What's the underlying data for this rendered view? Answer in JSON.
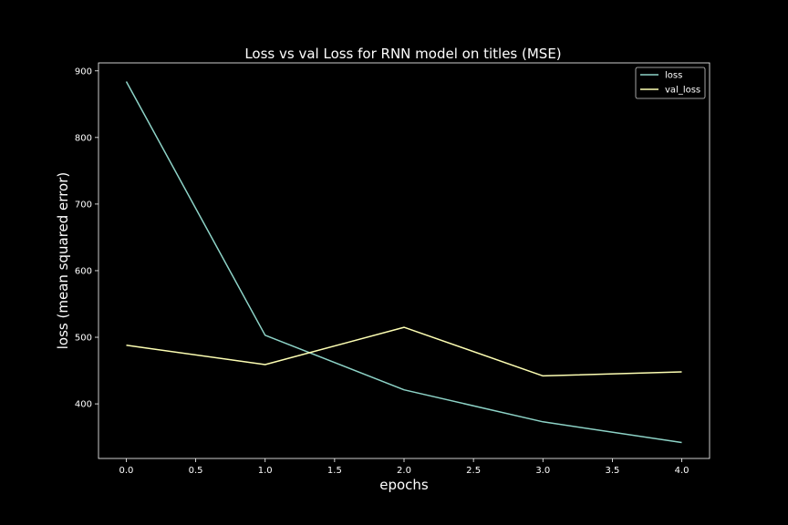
{
  "chart_data": {
    "type": "line",
    "title": "Loss vs val Loss for RNN model on titles (MSE)",
    "xlabel": "epochs",
    "ylabel": "loss (mean squared error)",
    "x": [
      0,
      1,
      2,
      3,
      4
    ],
    "xlim": [
      -0.2,
      4.2
    ],
    "ylim": [
      318,
      912
    ],
    "xticks": [
      0.0,
      0.5,
      1.0,
      1.5,
      2.0,
      2.5,
      3.0,
      3.5,
      4.0
    ],
    "xtick_labels": [
      "0.0",
      "0.5",
      "1.0",
      "1.5",
      "2.0",
      "2.5",
      "3.0",
      "3.5",
      "4.0"
    ],
    "yticks": [
      400,
      500,
      600,
      700,
      800,
      900
    ],
    "ytick_labels": [
      "400",
      "500",
      "600",
      "700",
      "800",
      "900"
    ],
    "grid": false,
    "legend_position": "top-right",
    "series": [
      {
        "name": "loss",
        "color": "#8dd3c7",
        "values": [
          884,
          503,
          421,
          373,
          342
        ]
      },
      {
        "name": "val_loss",
        "color": "#feffb3",
        "values": [
          488,
          459,
          515,
          442,
          448
        ]
      }
    ]
  },
  "colors": {
    "background": "#000000",
    "axes": "#ffffff",
    "text": "#ffffff"
  }
}
